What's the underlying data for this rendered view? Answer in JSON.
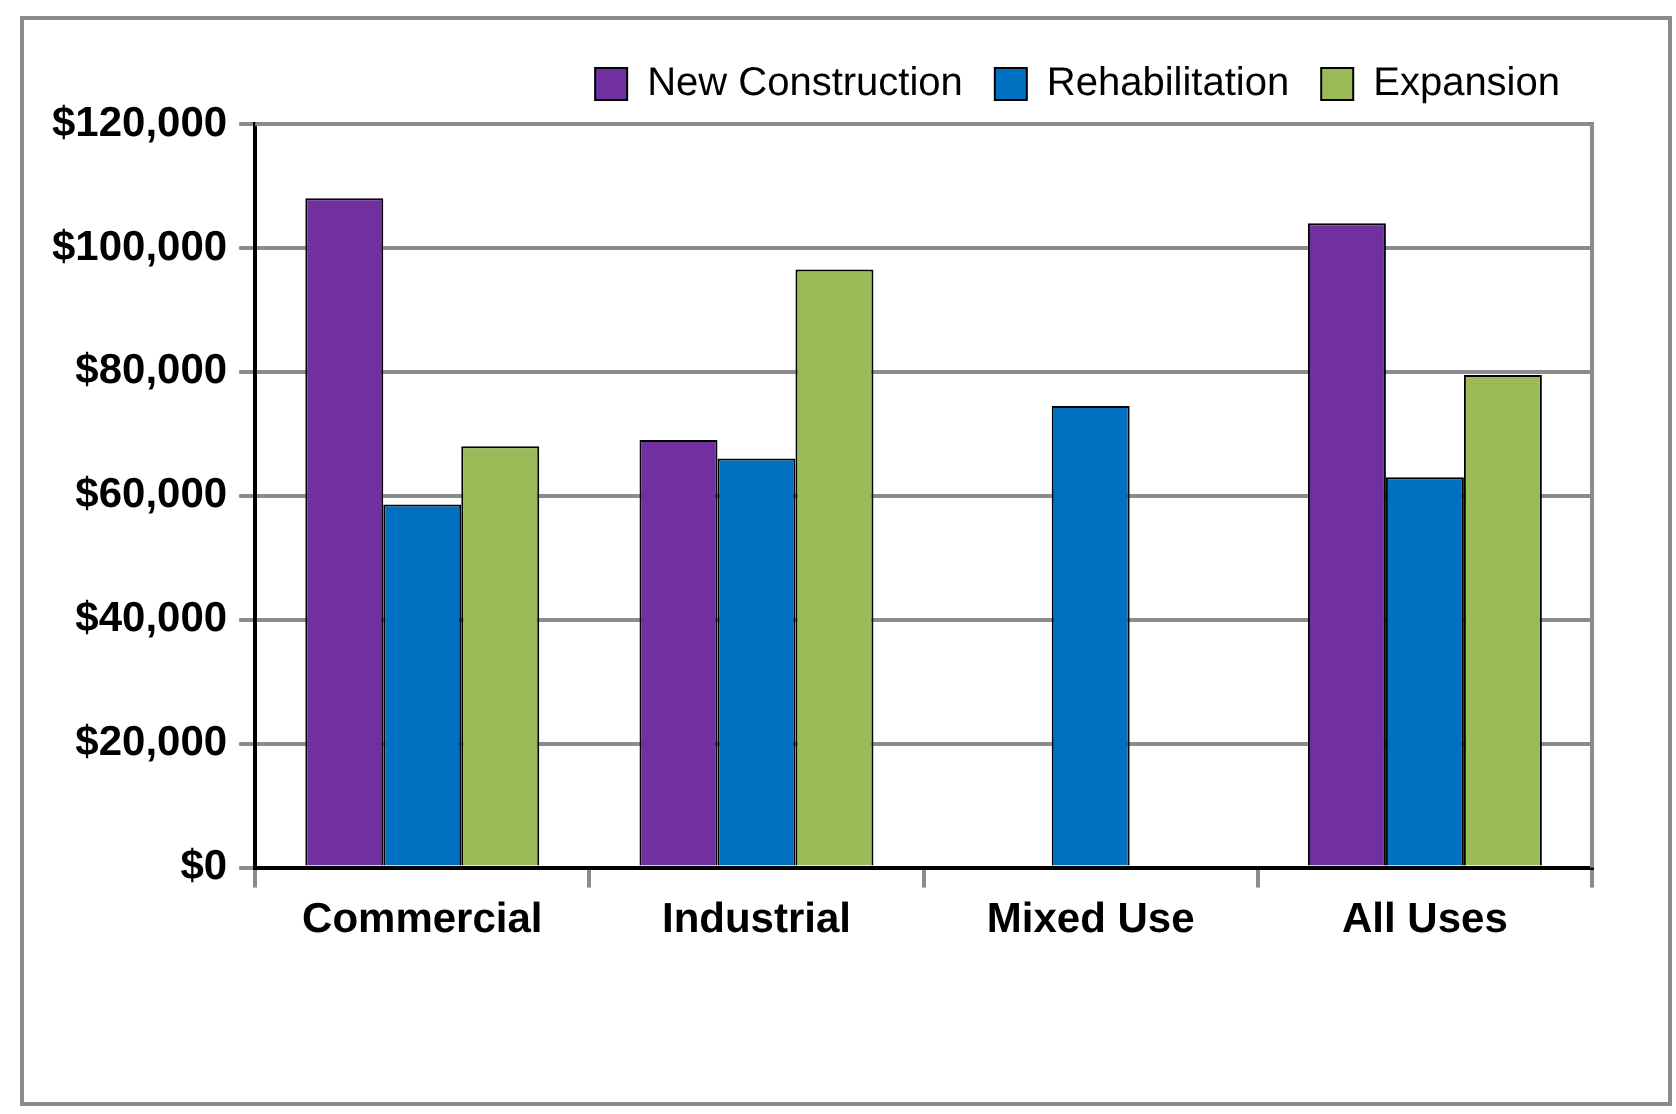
{
  "chart_data": {
    "type": "bar",
    "categories": [
      "Commercial",
      "Industrial",
      "Mixed Use",
      "All Uses"
    ],
    "series": [
      {
        "name": "New Construction",
        "color": "#7030a0",
        "values": [
          108000,
          69000,
          null,
          104000
        ]
      },
      {
        "name": "Rehabilitation",
        "color": "#0070c0",
        "values": [
          58600,
          66000,
          74500,
          63000
        ]
      },
      {
        "name": "Expansion",
        "color": "#9bbb59",
        "values": [
          68000,
          96500,
          null,
          79500
        ]
      }
    ],
    "ylim": [
      0,
      120000
    ],
    "yticks": [
      {
        "value": 0,
        "label": "$0"
      },
      {
        "value": 20000,
        "label": "$20,000"
      },
      {
        "value": 40000,
        "label": "$40,000"
      },
      {
        "value": 60000,
        "label": "$60,000"
      },
      {
        "value": 80000,
        "label": "$80,000"
      },
      {
        "value": 100000,
        "label": "$100,000"
      },
      {
        "value": 120000,
        "label": "$120,000"
      }
    ],
    "grid": "y",
    "legend": "top right"
  }
}
